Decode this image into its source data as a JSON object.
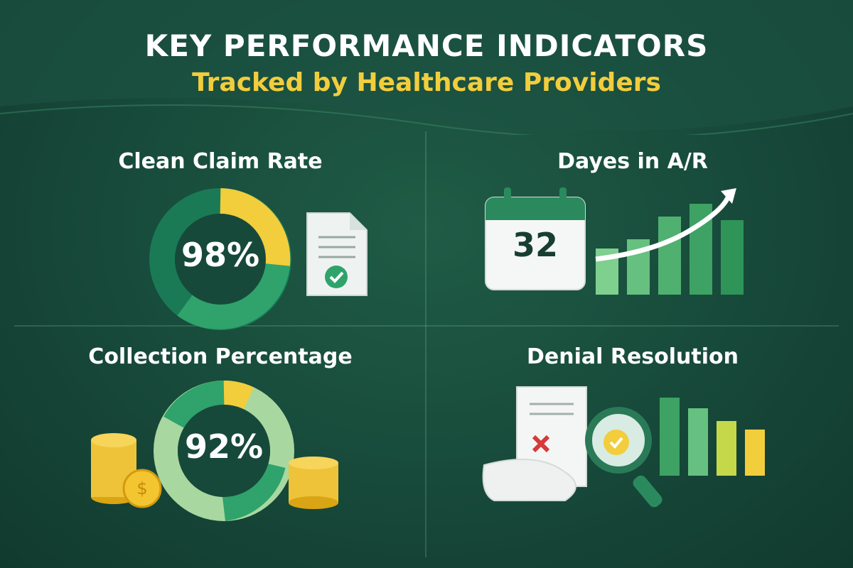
{
  "header": {
    "title": "KEY PERFORMANCE INDICATORS",
    "subtitle": "Tracked by Healthcare Providers"
  },
  "panels": {
    "clean_claim": {
      "title": "Clean Claim Rate",
      "value": "98%",
      "fraction": 0.98
    },
    "days_ar": {
      "title": "Dayes in A/R",
      "value": "32"
    },
    "collection": {
      "title": "Collection Percentage",
      "value": "92%",
      "fraction": 0.92
    },
    "denial": {
      "title": "Denial Resolution"
    }
  },
  "colors": {
    "background": "#17493a",
    "accent_yellow": "#f2cd3c",
    "accent_green": "#2fa36b",
    "light_green": "#a8d8a0"
  }
}
